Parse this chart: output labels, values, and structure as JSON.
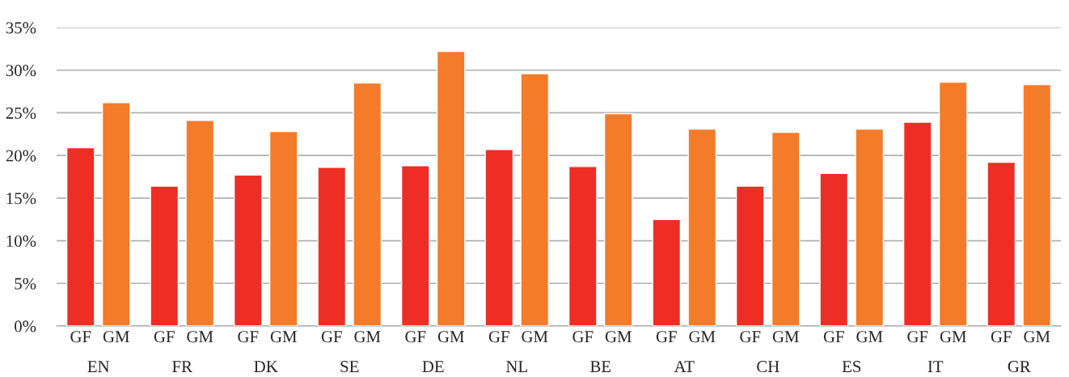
{
  "chart_data": {
    "type": "bar",
    "categories": [
      "EN",
      "FR",
      "DK",
      "SE",
      "DE",
      "NL",
      "BE",
      "AT",
      "CH",
      "ES",
      "IT",
      "GR"
    ],
    "series": [
      {
        "name": "GF",
        "color": "#ee2e24",
        "values": [
          20.9,
          16.4,
          17.7,
          18.6,
          18.8,
          20.7,
          18.7,
          12.5,
          16.4,
          17.9,
          23.9,
          19.2
        ]
      },
      {
        "name": "GM",
        "color": "#f47b2a",
        "values": [
          26.2,
          24.1,
          22.8,
          28.5,
          32.2,
          29.6,
          24.9,
          23.1,
          22.7,
          23.1,
          28.6,
          28.3
        ]
      }
    ],
    "ylim": [
      0,
      35
    ],
    "yticks": [
      {
        "value": 0,
        "label": "0%"
      },
      {
        "value": 5,
        "label": "5%"
      },
      {
        "value": 10,
        "label": "10%"
      },
      {
        "value": 15,
        "label": "15%"
      },
      {
        "value": 20,
        "label": "20%"
      },
      {
        "value": 25,
        "label": "25%"
      },
      {
        "value": 30,
        "label": "30%"
      },
      {
        "value": 35,
        "label": "35%"
      }
    ],
    "grid": "y",
    "legend": false
  }
}
